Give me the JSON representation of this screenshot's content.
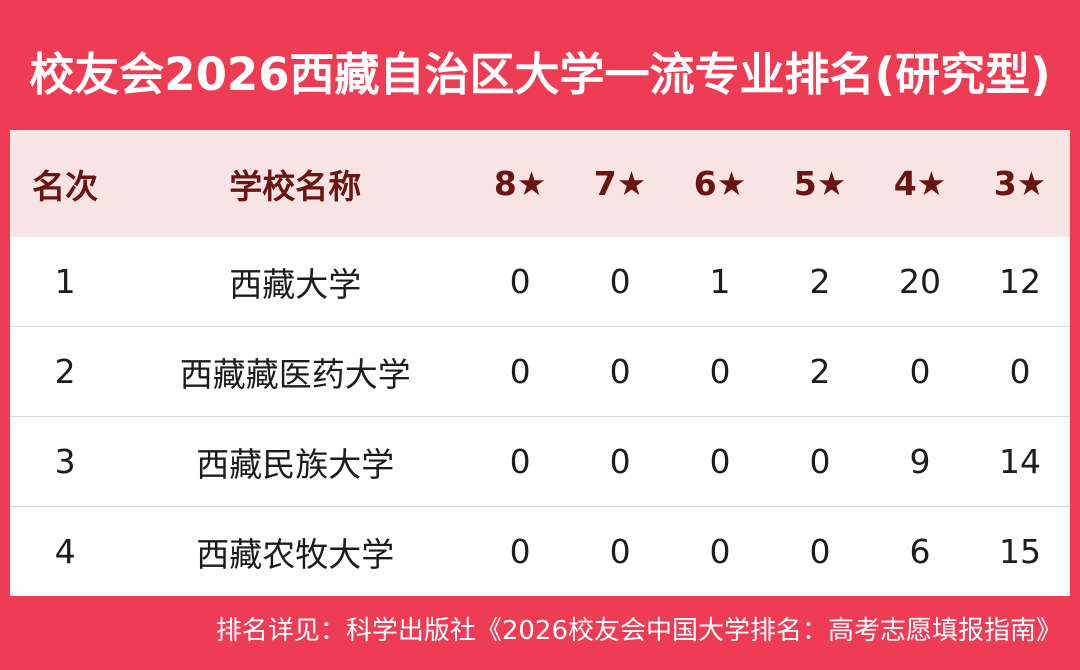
{
  "title": "校友会2026西藏自治区大学一流专业排名(研究型)",
  "footer": "排名详见：科学出版社《2026校友会中国大学排名：高考志愿填报指南》",
  "colors": {
    "accent_red": "#ee3c55",
    "header_pink": "#f9e4e4",
    "header_maroon": "#6b1414",
    "body_text": "#1c1c1c",
    "divider_gray": "#dcdcdc",
    "white": "#ffffff"
  },
  "chart_data": {
    "type": "table",
    "title": "校友会2026西藏自治区大学一流专业排名(研究型)",
    "columns": [
      "名次",
      "学校名称",
      "8★",
      "7★",
      "6★",
      "5★",
      "4★",
      "3★"
    ],
    "rows": [
      [
        "1",
        "西藏大学",
        "0",
        "0",
        "1",
        "2",
        "20",
        "12"
      ],
      [
        "2",
        "西藏藏医药大学",
        "0",
        "0",
        "0",
        "2",
        "0",
        "0"
      ],
      [
        "3",
        "西藏民族大学",
        "0",
        "0",
        "0",
        "0",
        "9",
        "14"
      ],
      [
        "4",
        "西藏农牧大学",
        "0",
        "0",
        "0",
        "0",
        "6",
        "15"
      ]
    ],
    "note": "排名详见：科学出版社《2026校友会中国大学排名：高考志愿填报指南》"
  }
}
